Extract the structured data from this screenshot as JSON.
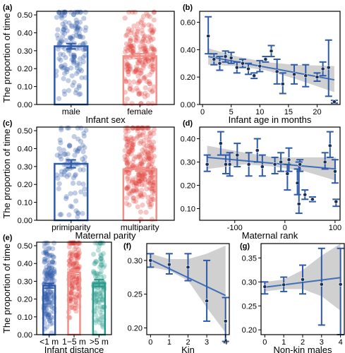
{
  "colors": {
    "blue": "#2e5aa8",
    "red": "#e0443e",
    "pink": "#f08f87",
    "teal": "#2c9b8c",
    "band": "#c8c8c8",
    "line": "#3f6fb8"
  },
  "shared_ylabel": "The proportion of time",
  "chart_data": [
    {
      "panel": "(a)",
      "type": "bar",
      "xlabel": "Infant sex",
      "ylabel": "The proportion of time",
      "ylim": [
        0,
        0.52
      ],
      "yticks": [
        "0.00",
        "0.10",
        "0.20",
        "0.30",
        "0.40",
        "0.50"
      ],
      "categories": [
        "male",
        "female"
      ],
      "values": [
        0.325,
        0.27
      ],
      "errors": [
        0.015,
        0.013
      ],
      "point_counts": [
        150,
        200
      ],
      "point_colors": [
        "blue",
        "red"
      ],
      "bar_colors": [
        "blue",
        "pink"
      ]
    },
    {
      "panel": "(b)",
      "type": "scatter",
      "xlabel": "Infant age in months",
      "ylim": [
        0,
        0.68
      ],
      "yticks": [
        "0.00",
        "0.20",
        "0.40",
        "0.60"
      ],
      "xlim": [
        -0.5,
        24
      ],
      "xticks": [
        "0",
        "5",
        "10",
        "15",
        "20"
      ],
      "points": [
        {
          "x": 1,
          "y": 0.5,
          "lo": 0.37,
          "hi": 0.64
        },
        {
          "x": 2,
          "y": 0.33,
          "lo": 0.29,
          "hi": 0.37
        },
        {
          "x": 3,
          "y": 0.3,
          "lo": 0.25,
          "hi": 0.35
        },
        {
          "x": 4,
          "y": 0.35,
          "lo": 0.31,
          "hi": 0.39
        },
        {
          "x": 5,
          "y": 0.34,
          "lo": 0.3,
          "hi": 0.38
        },
        {
          "x": 6,
          "y": 0.27,
          "lo": 0.23,
          "hi": 0.31
        },
        {
          "x": 7,
          "y": 0.3,
          "lo": 0.27,
          "hi": 0.33
        },
        {
          "x": 8,
          "y": 0.26,
          "lo": 0.22,
          "hi": 0.3
        },
        {
          "x": 9,
          "y": 0.21,
          "lo": 0.19,
          "hi": 0.23
        },
        {
          "x": 10,
          "y": 0.28,
          "lo": 0.24,
          "hi": 0.32
        },
        {
          "x": 11,
          "y": 0.33,
          "lo": 0.31,
          "hi": 0.35
        },
        {
          "x": 12,
          "y": 0.39,
          "lo": 0.35,
          "hi": 0.43
        },
        {
          "x": 13,
          "y": 0.24,
          "lo": 0.15,
          "hi": 0.33
        },
        {
          "x": 14,
          "y": 0.15,
          "lo": 0.08,
          "hi": 0.23
        },
        {
          "x": 16,
          "y": 0.22,
          "lo": 0.15,
          "hi": 0.29
        },
        {
          "x": 18,
          "y": 0.21,
          "lo": 0.13,
          "hi": 0.29
        },
        {
          "x": 20,
          "y": 0.2,
          "lo": 0.17,
          "hi": 0.23
        },
        {
          "x": 21,
          "y": 0.26,
          "lo": 0.21,
          "hi": 0.31
        },
        {
          "x": 22,
          "y": 0.27,
          "lo": 0.06,
          "hi": 0.47
        },
        {
          "x": 23,
          "y": 0.02,
          "lo": 0.01,
          "hi": 0.03
        }
      ],
      "fit": {
        "x0": 1,
        "y0": 0.35,
        "x1": 23,
        "y1": 0.18
      },
      "band": [
        [
          1,
          0.29,
          0.41
        ],
        [
          6,
          0.28,
          0.35
        ],
        [
          11,
          0.25,
          0.31
        ],
        [
          16,
          0.19,
          0.29
        ],
        [
          23,
          0.09,
          0.28
        ]
      ]
    },
    {
      "panel": "(c)",
      "type": "bar",
      "xlabel": "Maternal parity",
      "ylabel": "The proportion of time",
      "ylim": [
        0,
        0.52
      ],
      "yticks": [
        "0.00",
        "0.10",
        "0.20",
        "0.30",
        "0.40",
        "0.50"
      ],
      "categories": [
        "primiparity",
        "multiparity"
      ],
      "values": [
        0.315,
        0.285
      ],
      "errors": [
        0.022,
        0.01
      ],
      "point_counts": [
        90,
        260
      ],
      "point_colors": [
        "blue",
        "red"
      ],
      "bar_colors": [
        "blue",
        "pink"
      ]
    },
    {
      "panel": "(d)",
      "type": "scatter",
      "xlabel": "Maternal rank",
      "ylim": [
        0.05,
        0.45
      ],
      "yticks": [
        "0.10",
        "0.20",
        "0.30",
        "0.40"
      ],
      "xlim": [
        -170,
        110
      ],
      "xticks": [
        "-100",
        "0",
        "100"
      ],
      "points": [
        {
          "x": -155,
          "y": 0.29,
          "lo": 0.26,
          "hi": 0.33
        },
        {
          "x": -128,
          "y": 0.38,
          "lo": 0.33,
          "hi": 0.43
        },
        {
          "x": -118,
          "y": 0.29,
          "lo": 0.25,
          "hi": 0.33
        },
        {
          "x": -110,
          "y": 0.29,
          "lo": 0.24,
          "hi": 0.34
        },
        {
          "x": -95,
          "y": 0.33,
          "lo": 0.28,
          "hi": 0.38
        },
        {
          "x": -72,
          "y": 0.29,
          "lo": 0.24,
          "hi": 0.34
        },
        {
          "x": -55,
          "y": 0.35,
          "lo": 0.3,
          "hi": 0.4
        },
        {
          "x": -45,
          "y": 0.28,
          "lo": 0.24,
          "hi": 0.33
        },
        {
          "x": -20,
          "y": 0.29,
          "lo": 0.25,
          "hi": 0.32
        },
        {
          "x": -8,
          "y": 0.3,
          "lo": 0.26,
          "hi": 0.34
        },
        {
          "x": 5,
          "y": 0.25,
          "lo": 0.18,
          "hi": 0.29
        },
        {
          "x": 8,
          "y": 0.31,
          "lo": 0.26,
          "hi": 0.36
        },
        {
          "x": 25,
          "y": 0.21,
          "lo": 0.16,
          "hi": 0.27
        },
        {
          "x": 28,
          "y": 0.12,
          "lo": 0.08,
          "hi": 0.3
        },
        {
          "x": 30,
          "y": 0.29,
          "lo": 0.26,
          "hi": 0.31
        },
        {
          "x": 40,
          "y": 0.16,
          "lo": 0.14,
          "hi": 0.18
        },
        {
          "x": 55,
          "y": 0.14,
          "lo": 0.13,
          "hi": 0.15
        },
        {
          "x": 80,
          "y": 0.3,
          "lo": 0.27,
          "hi": 0.34
        },
        {
          "x": 90,
          "y": 0.37,
          "lo": 0.32,
          "hi": 0.43
        },
        {
          "x": 100,
          "y": 0.26,
          "lo": 0.21,
          "hi": 0.31
        },
        {
          "x": 102,
          "y": 0.13,
          "lo": 0.11,
          "hi": 0.14
        }
      ],
      "fit": {
        "x0": -155,
        "y0": 0.32,
        "x1": 102,
        "y1": 0.27
      },
      "band": [
        [
          -155,
          0.27,
          0.37
        ],
        [
          -80,
          0.29,
          0.34
        ],
        [
          -20,
          0.28,
          0.32
        ],
        [
          40,
          0.26,
          0.32
        ],
        [
          102,
          0.22,
          0.32
        ]
      ]
    },
    {
      "panel": "(e)",
      "type": "bar",
      "xlabel": "Infant distance",
      "ylabel": "The proportion of time",
      "ylim": [
        0,
        0.52
      ],
      "yticks": [
        "0.00",
        "0.10",
        "0.20",
        "0.30",
        "0.40",
        "0.50"
      ],
      "categories": [
        "<1 m",
        "1−5 m",
        ">5 m"
      ],
      "values": [
        0.275,
        0.35,
        0.29
      ],
      "errors": [
        0.013,
        0.013,
        0.02
      ],
      "point_counts": [
        150,
        130,
        110
      ],
      "point_colors": [
        "blue",
        "red",
        "teal"
      ],
      "bar_colors": [
        "blue",
        "pink",
        "teal"
      ]
    },
    {
      "panel": "(f)",
      "type": "line",
      "xlabel": "Kin",
      "ylim": [
        0.19,
        0.325
      ],
      "yticks": [
        "0.20",
        "0.25",
        "0.30"
      ],
      "xlim": [
        -0.2,
        4.2
      ],
      "xticks": [
        "0",
        "1",
        "2",
        "3",
        "4"
      ],
      "points": [
        {
          "x": 0,
          "y": 0.3,
          "lo": 0.29,
          "hi": 0.31
        },
        {
          "x": 1,
          "y": 0.294,
          "lo": 0.28,
          "hi": 0.31
        },
        {
          "x": 2,
          "y": 0.29,
          "lo": 0.27,
          "hi": 0.31
        },
        {
          "x": 3,
          "y": 0.24,
          "lo": 0.21,
          "hi": 0.3
        },
        {
          "x": 4,
          "y": 0.21,
          "lo": 0.18,
          "hi": 0.245
        }
      ],
      "fit": {
        "x0": 0,
        "y0": 0.301,
        "x1": 4,
        "y1": 0.248
      },
      "band": [
        [
          0,
          0.29,
          0.31
        ],
        [
          1,
          0.285,
          0.302
        ],
        [
          2,
          0.27,
          0.302
        ],
        [
          3,
          0.23,
          0.31
        ],
        [
          4,
          0.193,
          0.322
        ]
      ]
    },
    {
      "panel": "(g)",
      "type": "line",
      "xlabel": "Non-kin males",
      "ylim": [
        0.19,
        0.38
      ],
      "yticks": [
        "0.20",
        "0.25",
        "0.30",
        "0.35"
      ],
      "xlim": [
        -0.2,
        4.2
      ],
      "xticks": [
        "0",
        "1",
        "2",
        "3",
        "4"
      ],
      "points": [
        {
          "x": 0,
          "y": 0.29,
          "lo": 0.275,
          "hi": 0.3
        },
        {
          "x": 1,
          "y": 0.294,
          "lo": 0.28,
          "hi": 0.31
        },
        {
          "x": 2,
          "y": 0.305,
          "lo": 0.275,
          "hi": 0.335
        },
        {
          "x": 3,
          "y": 0.295,
          "lo": 0.21,
          "hi": 0.37
        },
        {
          "x": 4,
          "y": 0.295,
          "lo": 0.19,
          "hi": 0.37
        }
      ],
      "fit": {
        "x0": 0,
        "y0": 0.289,
        "x1": 4,
        "y1": 0.309
      },
      "band": [
        [
          0,
          0.28,
          0.3
        ],
        [
          1,
          0.285,
          0.305
        ],
        [
          2,
          0.285,
          0.325
        ],
        [
          3,
          0.27,
          0.355
        ],
        [
          4,
          0.24,
          0.38
        ]
      ]
    }
  ]
}
